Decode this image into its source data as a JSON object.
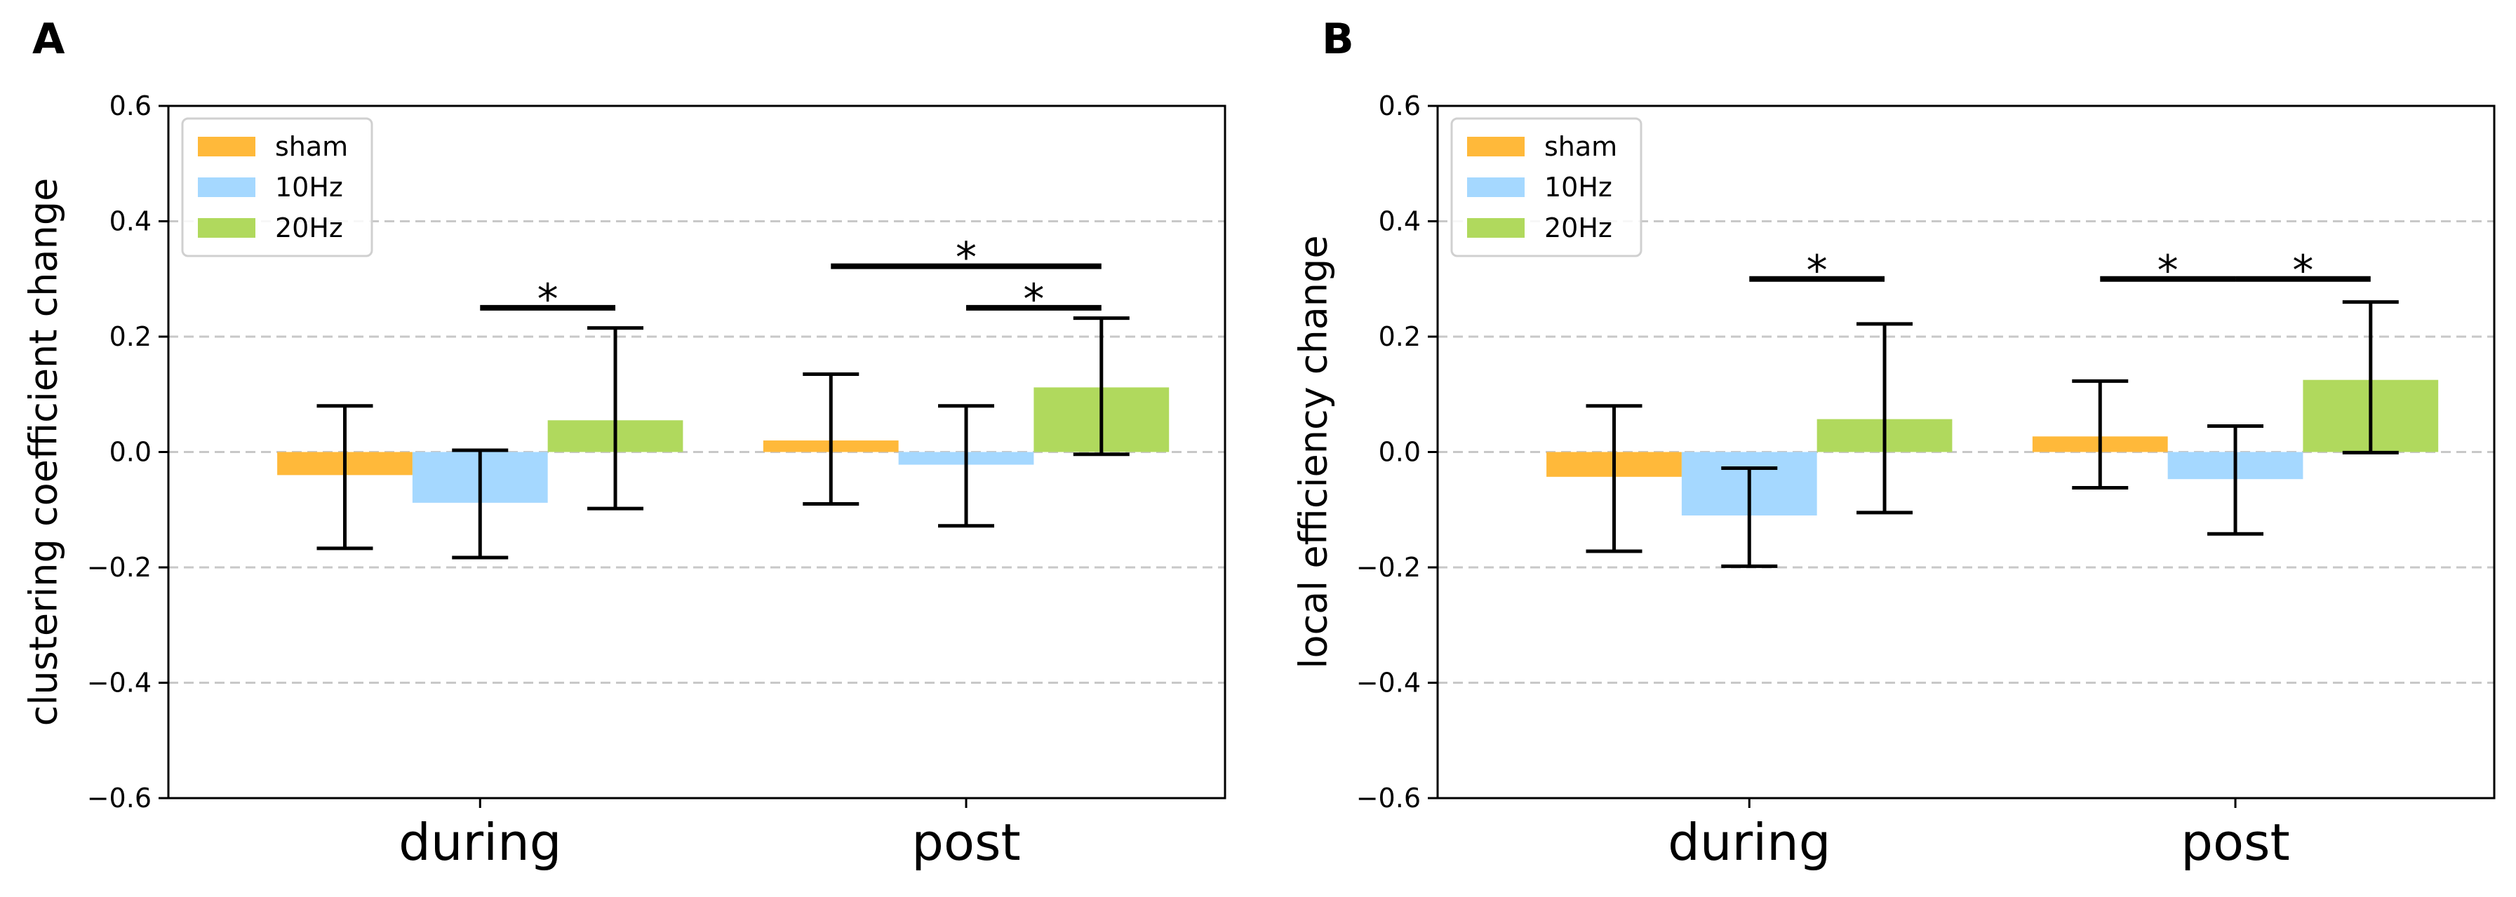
{
  "chart_data": [
    {
      "panel_label": "A",
      "type": "bar",
      "ylabel": "clustering coefficient change",
      "xlabel": "",
      "ylim": [
        -0.6,
        0.6
      ],
      "yticks": [
        0.6,
        0.4,
        0.2,
        0.0,
        -0.2,
        -0.4,
        -0.6
      ],
      "ytick_labels": [
        "0.6",
        "0.4",
        "0.2",
        "0.0",
        "−0.2",
        "−0.4",
        "−0.6"
      ],
      "grid": true,
      "legend_position": "top-left",
      "categories": [
        "during",
        "post"
      ],
      "series": [
        {
          "name": "sham",
          "color": "#ffb93a",
          "values": [
            -0.04,
            0.02
          ],
          "err_low": [
            -0.167,
            -0.09
          ],
          "err_high": [
            0.08,
            0.135
          ]
        },
        {
          "name": "10Hz",
          "color": "#a5d8ff",
          "values": [
            -0.088,
            -0.022
          ],
          "err_low": [
            -0.183,
            -0.128
          ],
          "err_high": [
            0.003,
            0.08
          ]
        },
        {
          "name": "20Hz",
          "color": "#b0d95d",
          "values": [
            0.055,
            0.112
          ],
          "err_low": [
            -0.098,
            -0.004
          ],
          "err_high": [
            0.215,
            0.232
          ]
        }
      ],
      "significance": [
        {
          "label": "*",
          "category": 0,
          "from_series": 1,
          "to_series": 2,
          "y": 0.25
        },
        {
          "label": "*",
          "category": 1,
          "from_series": 0,
          "to_series": 2,
          "y": 0.322
        },
        {
          "label": "*",
          "category": 1,
          "from_series": 1,
          "to_series": 2,
          "y": 0.25
        }
      ]
    },
    {
      "panel_label": "B",
      "type": "bar",
      "ylabel": "local efficiency change",
      "xlabel": "",
      "ylim": [
        -0.6,
        0.6
      ],
      "yticks": [
        0.6,
        0.4,
        0.2,
        0.0,
        -0.2,
        -0.4,
        -0.6
      ],
      "ytick_labels": [
        "0.6",
        "0.4",
        "0.2",
        "0.0",
        "−0.2",
        "−0.4",
        "−0.6"
      ],
      "grid": true,
      "legend_position": "top-left",
      "categories": [
        "during",
        "post"
      ],
      "series": [
        {
          "name": "sham",
          "color": "#ffb93a",
          "values": [
            -0.043,
            0.027
          ],
          "err_low": [
            -0.172,
            -0.062
          ],
          "err_high": [
            0.08,
            0.123
          ]
        },
        {
          "name": "10Hz",
          "color": "#a5d8ff",
          "values": [
            -0.11,
            -0.047
          ],
          "err_low": [
            -0.198,
            -0.142
          ],
          "err_high": [
            -0.028,
            0.045
          ]
        },
        {
          "name": "20Hz",
          "color": "#b0d95d",
          "values": [
            0.057,
            0.125
          ],
          "err_low": [
            -0.105,
            -0.001
          ],
          "err_high": [
            0.222,
            0.26
          ]
        }
      ],
      "significance": [
        {
          "label": "*",
          "category": 0,
          "from_series": 1,
          "to_series": 2,
          "y": 0.3
        },
        {
          "label": "*",
          "category": 1,
          "from_series": 0,
          "to_series": 1,
          "y": 0.3
        },
        {
          "label": "*",
          "category": 1,
          "from_series": 1,
          "to_series": 2,
          "y": 0.3
        }
      ]
    }
  ]
}
